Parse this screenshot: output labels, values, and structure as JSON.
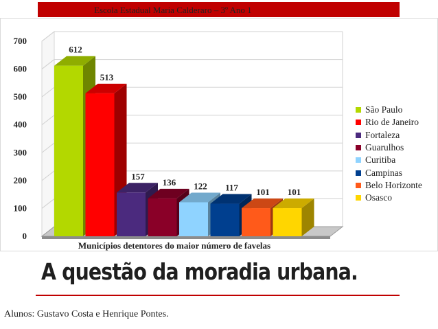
{
  "banner": {
    "text": "Escola Estadual Maria Calderaro – 3º Ano 1"
  },
  "headline": "A questão da moradia urbana.",
  "authors": "Alunos: Gustavo Costa e Henrique Pontes.",
  "chart_data": {
    "type": "bar",
    "xlabel": "Municípios detentores do maior número de favelas",
    "ylabel": "",
    "ylim": [
      0,
      700
    ],
    "yticks": [
      0,
      100,
      200,
      300,
      400,
      500,
      600,
      700
    ],
    "grid": true,
    "legend_position": "right",
    "series": [
      {
        "name": "São Paulo",
        "value": 612,
        "color": "#b3d800"
      },
      {
        "name": "Rio de Janeiro",
        "value": 513,
        "color": "#ff0000"
      },
      {
        "name": "Fortaleza",
        "value": 157,
        "color": "#4b2a7e"
      },
      {
        "name": "Guarulhos",
        "value": 136,
        "color": "#8a0028"
      },
      {
        "name": "Curitiba",
        "value": 122,
        "color": "#8fd3ff"
      },
      {
        "name": "Campinas",
        "value": 117,
        "color": "#003f8f"
      },
      {
        "name": "Belo Horizonte",
        "value": 101,
        "color": "#ff5a1a"
      },
      {
        "name": "Osasco",
        "value": 101,
        "color": "#ffd600"
      }
    ]
  }
}
